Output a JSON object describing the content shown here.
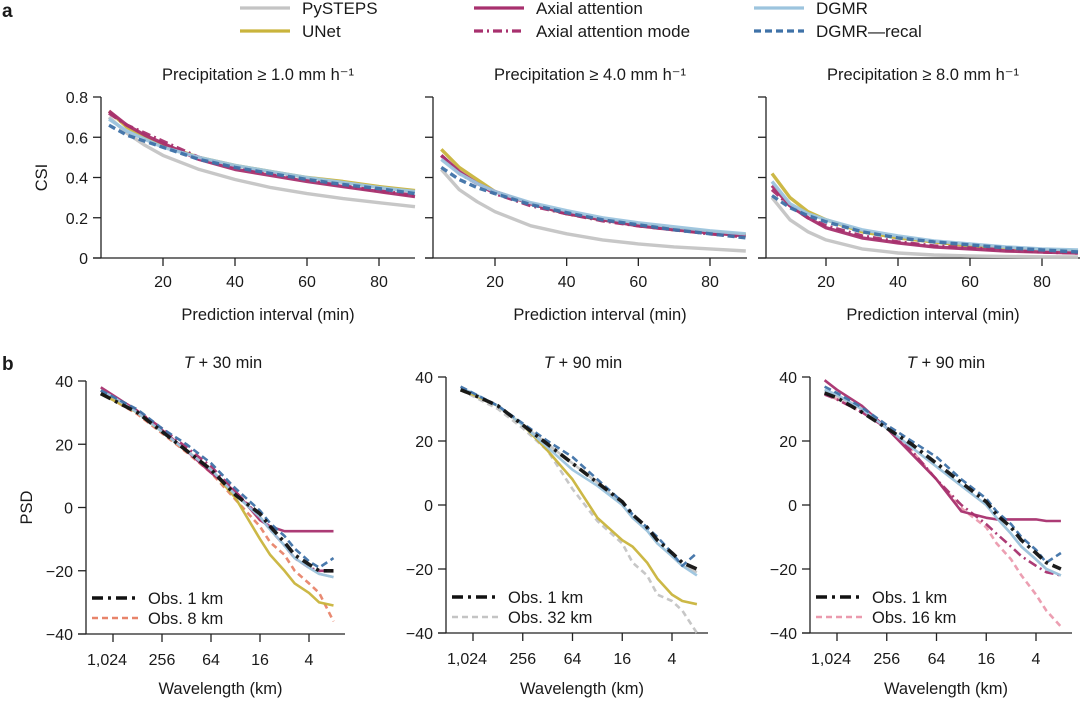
{
  "panel_labels": {
    "a": "a",
    "b": "b"
  },
  "legend": {
    "items": [
      {
        "name": "PySTEPS",
        "color": "#c4c4c4",
        "dash": "solid"
      },
      {
        "name": "UNet",
        "color": "#c9b43c",
        "dash": "solid"
      },
      {
        "name": "Axial attention",
        "color": "#a8306e",
        "dash": "solid"
      },
      {
        "name": "Axial attention mode",
        "color": "#a8306e",
        "dash": "dashdot"
      },
      {
        "name": "DGMR",
        "color": "#9cc4de",
        "dash": "solid"
      },
      {
        "name": "DGMR—recal",
        "color": "#3f72a8",
        "dash": "dashed"
      }
    ]
  },
  "chart_data": [
    {
      "id": "a1",
      "type": "line",
      "title": "Precipitation ≥ 1.0 mm h⁻¹",
      "xlabel": "Prediction interval (min)",
      "ylabel": "CSI",
      "xlim": [
        0,
        90
      ],
      "ylim": [
        0,
        0.8
      ],
      "xticks": [
        20,
        40,
        60,
        80
      ],
      "yticks": [
        0,
        0.2,
        0.4,
        0.6,
        0.8
      ],
      "ytick_labels": [
        "0",
        "0.2",
        "0.4",
        "0.6",
        "0.8"
      ],
      "x": [
        5,
        10,
        15,
        20,
        30,
        40,
        50,
        60,
        70,
        80,
        90
      ],
      "series": [
        {
          "name": "PySTEPS",
          "values": [
            0.7,
            0.62,
            0.56,
            0.51,
            0.44,
            0.39,
            0.35,
            0.32,
            0.295,
            0.275,
            0.255
          ]
        },
        {
          "name": "UNet",
          "values": [
            0.73,
            0.65,
            0.6,
            0.56,
            0.5,
            0.46,
            0.43,
            0.4,
            0.38,
            0.355,
            0.335
          ]
        },
        {
          "name": "Axial attention",
          "values": [
            0.73,
            0.66,
            0.61,
            0.57,
            0.49,
            0.44,
            0.41,
            0.38,
            0.355,
            0.33,
            0.305
          ]
        },
        {
          "name": "Axial attention mode",
          "values": [
            0.72,
            0.66,
            0.62,
            0.58,
            0.5,
            0.45,
            0.42,
            0.39,
            0.36,
            0.335,
            0.31
          ]
        },
        {
          "name": "DGMR",
          "values": [
            0.69,
            0.63,
            0.59,
            0.55,
            0.5,
            0.46,
            0.43,
            0.4,
            0.375,
            0.35,
            0.33
          ]
        },
        {
          "name": "DGMR—recal",
          "values": [
            0.66,
            0.61,
            0.58,
            0.55,
            0.49,
            0.45,
            0.42,
            0.39,
            0.365,
            0.345,
            0.32
          ]
        }
      ]
    },
    {
      "id": "a2",
      "type": "line",
      "title": "Precipitation ≥ 4.0 mm h⁻¹",
      "xlabel": "Prediction interval (min)",
      "ylabel": "",
      "xlim": [
        0,
        90
      ],
      "ylim": [
        0,
        0.8
      ],
      "xticks": [
        20,
        40,
        60,
        80
      ],
      "yticks": [
        0,
        0.2,
        0.4,
        0.6,
        0.8
      ],
      "ytick_labels": [],
      "x": [
        5,
        10,
        15,
        20,
        30,
        40,
        50,
        60,
        70,
        80,
        90
      ],
      "series": [
        {
          "name": "PySTEPS",
          "values": [
            0.44,
            0.34,
            0.28,
            0.23,
            0.16,
            0.12,
            0.09,
            0.07,
            0.055,
            0.045,
            0.035
          ]
        },
        {
          "name": "UNet",
          "values": [
            0.54,
            0.45,
            0.39,
            0.33,
            0.27,
            0.22,
            0.19,
            0.165,
            0.145,
            0.13,
            0.115
          ]
        },
        {
          "name": "Axial attention",
          "values": [
            0.51,
            0.43,
            0.37,
            0.33,
            0.27,
            0.22,
            0.19,
            0.16,
            0.14,
            0.125,
            0.11
          ]
        },
        {
          "name": "Axial attention mode",
          "values": [
            0.51,
            0.42,
            0.37,
            0.32,
            0.26,
            0.22,
            0.185,
            0.16,
            0.14,
            0.12,
            0.105
          ]
        },
        {
          "name": "DGMR",
          "values": [
            0.49,
            0.42,
            0.37,
            0.33,
            0.275,
            0.235,
            0.2,
            0.175,
            0.155,
            0.135,
            0.12
          ]
        },
        {
          "name": "DGMR—recal",
          "values": [
            0.45,
            0.39,
            0.35,
            0.32,
            0.265,
            0.225,
            0.19,
            0.165,
            0.14,
            0.12,
            0.1
          ]
        }
      ]
    },
    {
      "id": "a3",
      "type": "line",
      "title": "Precipitation ≥ 8.0 mm h⁻¹",
      "xlabel": "Prediction interval (min)",
      "ylabel": "",
      "xlim": [
        0,
        90
      ],
      "ylim": [
        0,
        0.8
      ],
      "xticks": [
        20,
        40,
        60,
        80
      ],
      "yticks": [
        0,
        0.2,
        0.4,
        0.6,
        0.8
      ],
      "ytick_labels": [],
      "x": [
        5,
        10,
        15,
        20,
        30,
        40,
        50,
        60,
        70,
        80,
        90
      ],
      "series": [
        {
          "name": "PySTEPS",
          "values": [
            0.3,
            0.19,
            0.13,
            0.09,
            0.045,
            0.025,
            0.015,
            0.01,
            0.008,
            0.006,
            0.005
          ]
        },
        {
          "name": "UNet",
          "values": [
            0.42,
            0.3,
            0.23,
            0.19,
            0.13,
            0.1,
            0.08,
            0.06,
            0.05,
            0.04,
            0.035
          ]
        },
        {
          "name": "Axial attention",
          "values": [
            0.36,
            0.26,
            0.2,
            0.15,
            0.1,
            0.075,
            0.055,
            0.045,
            0.035,
            0.03,
            0.025
          ]
        },
        {
          "name": "Axial attention mode",
          "values": [
            0.34,
            0.26,
            0.2,
            0.16,
            0.11,
            0.08,
            0.06,
            0.05,
            0.04,
            0.03,
            0.025
          ]
        },
        {
          "name": "DGMR",
          "values": [
            0.38,
            0.27,
            0.22,
            0.19,
            0.14,
            0.11,
            0.085,
            0.07,
            0.055,
            0.045,
            0.04
          ]
        },
        {
          "name": "DGMR—recal",
          "values": [
            0.31,
            0.25,
            0.21,
            0.18,
            0.13,
            0.1,
            0.08,
            0.065,
            0.05,
            0.04,
            0.03
          ]
        }
      ]
    },
    {
      "id": "b1",
      "type": "line",
      "title_prefix": "T",
      "title_suffix": " + 30 min",
      "xlabel": "Wavelength (km)",
      "ylabel": "PSD",
      "x_scale": "log2-reversed",
      "xlim_km": [
        2048,
        1.5
      ],
      "ylim": [
        -40,
        40
      ],
      "xticks": [
        1024,
        256,
        64,
        16,
        4
      ],
      "xtick_labels": [
        "1,024",
        "256",
        "64",
        "16",
        "4"
      ],
      "yticks": [
        -40,
        -20,
        0,
        20,
        40
      ],
      "ytick_labels": [
        "−40",
        "−20",
        "0",
        "20",
        "40"
      ],
      "x_km": [
        1448,
        1024,
        512,
        256,
        128,
        64,
        32,
        16,
        12,
        8,
        6,
        4,
        3,
        2
      ],
      "series": [
        {
          "name": "Obs. 1 km",
          "color": "#111111",
          "dash": "obs1",
          "values": [
            36,
            34,
            30,
            24,
            18,
            12,
            4,
            -2,
            -6,
            -11,
            -15,
            -18,
            -20,
            -20
          ]
        },
        {
          "name": "Obs. 8 km",
          "color": "#e8846a",
          "dash": "obs",
          "values": [
            36,
            34,
            29.5,
            23.5,
            17.5,
            11,
            2.5,
            -6,
            -11,
            -15,
            -20,
            -24,
            -27,
            -36
          ]
        },
        {
          "name": "PySTEPS",
          "values": [
            36,
            34,
            30,
            24,
            18,
            12,
            4,
            -3,
            -7,
            -12,
            -16,
            -19,
            -21,
            -22
          ]
        },
        {
          "name": "UNet",
          "values": [
            36,
            34,
            30,
            24,
            18,
            12,
            3,
            -10,
            -15,
            -20,
            -24,
            -27,
            -30,
            -31
          ]
        },
        {
          "name": "Axial attention",
          "values": [
            38,
            35.5,
            30.5,
            24.5,
            18,
            11,
            5,
            -4,
            -6,
            -7.5,
            -7.5,
            -7.5,
            -7.5,
            -7.5
          ]
        },
        {
          "name": "Axial attention mode",
          "values": [
            37,
            35,
            30.5,
            25,
            19,
            13,
            5,
            -3,
            -7,
            -12,
            -16,
            -19,
            -20,
            -20
          ]
        },
        {
          "name": "DGMR",
          "values": [
            37,
            35,
            30,
            24,
            18,
            12,
            4,
            -3,
            -7,
            -12,
            -16,
            -19,
            -21,
            -22
          ]
        },
        {
          "name": "DGMR—recal",
          "values": [
            37,
            35,
            31,
            25,
            20,
            14,
            6,
            -1,
            -5,
            -9,
            -13,
            -17,
            -19,
            -16
          ]
        }
      ],
      "inset_legend": [
        {
          "name": "Obs. 1 km",
          "color": "#111111",
          "dash": "obs1"
        },
        {
          "name": "Obs. 8 km",
          "color": "#e8846a",
          "dash": "obs"
        }
      ]
    },
    {
      "id": "b2",
      "type": "line",
      "title_prefix": "T",
      "title_suffix": " + 90 min",
      "xlabel": "Wavelength (km)",
      "ylabel": "",
      "x_scale": "log2-reversed",
      "xlim_km": [
        2048,
        1.5
      ],
      "ylim": [
        -40,
        40
      ],
      "xticks": [
        1024,
        256,
        64,
        16,
        4
      ],
      "xtick_labels": [
        "1,024",
        "256",
        "64",
        "16",
        "4"
      ],
      "yticks": [
        -40,
        -20,
        0,
        20,
        40
      ],
      "ytick_labels": [
        "−40",
        "−20",
        "0",
        "20",
        "40"
      ],
      "x_km": [
        1448,
        1024,
        512,
        256,
        128,
        64,
        32,
        16,
        12,
        8,
        6,
        4,
        3,
        2
      ],
      "series": [
        {
          "name": "Obs. 1 km",
          "color": "#111111",
          "dash": "obs1",
          "values": [
            36,
            34.5,
            31,
            25,
            19,
            13,
            7,
            1,
            -3,
            -7,
            -11,
            -15,
            -18,
            -20
          ]
        },
        {
          "name": "Obs. 32 km",
          "color": "#c4c4c4",
          "dash": "obs",
          "values": [
            36,
            34,
            30,
            24,
            17,
            5,
            -5,
            -12,
            -18,
            -22,
            -28,
            -30,
            -33,
            -40
          ]
        },
        {
          "name": "PySTEPS",
          "values": [
            36,
            34.5,
            31,
            25,
            19,
            13,
            7,
            0,
            -4,
            -8,
            -12,
            -16,
            -19,
            -21
          ]
        },
        {
          "name": "UNet",
          "values": [
            36,
            34.5,
            31,
            25,
            17,
            8,
            -4,
            -11,
            -13,
            -18,
            -23,
            -28,
            -30,
            -31
          ]
        },
        {
          "name": "DGMR",
          "values": [
            36.5,
            35,
            31,
            25,
            18,
            11,
            6,
            0,
            -4,
            -8,
            -12,
            -16,
            -19,
            -22
          ]
        },
        {
          "name": "DGMR—recal",
          "values": [
            37,
            35,
            31,
            25.5,
            20,
            15,
            8,
            1,
            -3,
            -7,
            -10,
            -15,
            -19,
            -15
          ]
        }
      ],
      "inset_legend": [
        {
          "name": "Obs. 1 km",
          "color": "#111111",
          "dash": "obs1"
        },
        {
          "name": "Obs. 32 km",
          "color": "#c4c4c4",
          "dash": "obs"
        }
      ]
    },
    {
      "id": "b3",
      "type": "line",
      "title_prefix": "T",
      "title_suffix": " + 90 min",
      "xlabel": "Wavelength (km)",
      "ylabel": "",
      "x_scale": "log2-reversed",
      "xlim_km": [
        2048,
        1.5
      ],
      "ylim": [
        -40,
        40
      ],
      "xticks": [
        1024,
        256,
        64,
        16,
        4
      ],
      "xtick_labels": [
        "1,024",
        "256",
        "64",
        "16",
        "4"
      ],
      "yticks": [
        -40,
        -20,
        0,
        20,
        40
      ],
      "ytick_labels": [
        "−40",
        "−20",
        "0",
        "20",
        "40"
      ],
      "x_km": [
        1448,
        1024,
        512,
        256,
        128,
        64,
        32,
        16,
        12,
        8,
        6,
        4,
        3,
        2
      ],
      "series": [
        {
          "name": "Obs. 1 km",
          "color": "#111111",
          "dash": "obs1",
          "values": [
            35,
            33.5,
            29,
            24,
            19,
            13,
            7,
            1,
            -3,
            -7,
            -11,
            -15,
            -18,
            -20
          ]
        },
        {
          "name": "Obs. 16 km",
          "color": "#eb9aae",
          "dash": "obs",
          "values": [
            35,
            33,
            29,
            24,
            17,
            8,
            -1,
            -7,
            -12,
            -17,
            -22,
            -28,
            -33,
            -38
          ]
        },
        {
          "name": "PySTEPS",
          "values": [
            35.5,
            34,
            30,
            24,
            18,
            12,
            6,
            0,
            -4,
            -9,
            -13,
            -17,
            -20,
            -22
          ]
        },
        {
          "name": "Axial attention",
          "values": [
            39,
            36,
            31,
            24,
            16,
            8,
            -2,
            -4,
            -4.5,
            -4.5,
            -4.5,
            -4.5,
            -5,
            -5
          ]
        },
        {
          "name": "Axial attention mode",
          "values": [
            34.5,
            33,
            29,
            24,
            17,
            8,
            0,
            -6,
            -9,
            -13,
            -16,
            -19,
            -21,
            -22
          ]
        },
        {
          "name": "DGMR",
          "values": [
            36,
            34.5,
            30,
            24,
            18,
            12,
            6,
            0,
            -4,
            -9,
            -13,
            -17,
            -20,
            -22
          ]
        },
        {
          "name": "DGMR—recal",
          "values": [
            37,
            35,
            30.5,
            25,
            20,
            15,
            8,
            2,
            -2,
            -6,
            -10,
            -14,
            -18,
            -15
          ]
        }
      ],
      "inset_legend": [
        {
          "name": "Obs. 1 km",
          "color": "#111111",
          "dash": "obs1"
        },
        {
          "name": "Obs. 16 km",
          "color": "#eb9aae",
          "dash": "obs"
        }
      ]
    }
  ]
}
